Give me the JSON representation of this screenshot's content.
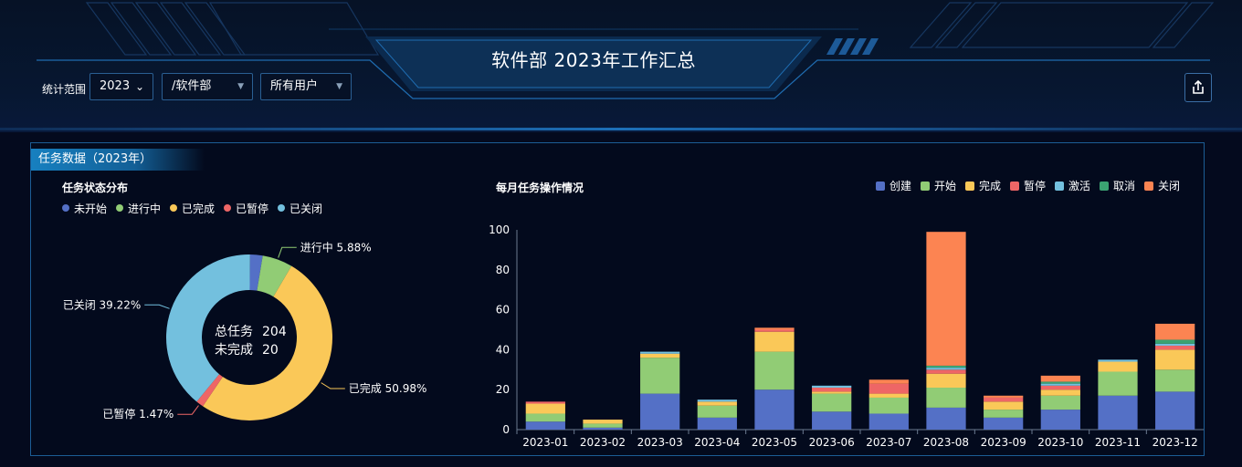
{
  "header": {
    "title": "软件部 2023年工作汇总",
    "filter_label": "统计范围",
    "year_select": "2023",
    "dept_select": "/软件部",
    "user_select": "所有用户",
    "share_icon": "export-icon"
  },
  "panel": {
    "tag": "任务数据（2023年）"
  },
  "chart_data": [
    {
      "type": "pie",
      "title": "任务状态分布",
      "donut": true,
      "legend_position": "top-left",
      "center_text": [
        {
          "label": "总任务",
          "value": "204"
        },
        {
          "label": "未完成",
          "value": "20"
        }
      ],
      "slices": [
        {
          "name": "未开始",
          "value": 2.45,
          "label": "",
          "color": "#5470c6"
        },
        {
          "name": "进行中",
          "value": 5.88,
          "label": "进行中  5.88%",
          "color": "#91cc75"
        },
        {
          "name": "已完成",
          "value": 50.98,
          "label": "已完成  50.98%",
          "color": "#fac858"
        },
        {
          "name": "已暂停",
          "value": 1.47,
          "label": "已暂停  1.47%",
          "color": "#ee6666"
        },
        {
          "name": "已关闭",
          "value": 39.22,
          "label": "已关闭  39.22%",
          "color": "#73c0de"
        }
      ]
    },
    {
      "type": "bar",
      "stacked": true,
      "title": "每月任务操作情况",
      "legend_position": "top-right",
      "categories": [
        "2023-01",
        "2023-02",
        "2023-03",
        "2023-04",
        "2023-05",
        "2023-06",
        "2023-07",
        "2023-08",
        "2023-09",
        "2023-10",
        "2023-11",
        "2023-12"
      ],
      "ylim": [
        0,
        100
      ],
      "yticks": [
        0,
        20,
        40,
        60,
        80,
        100
      ],
      "grid": false,
      "series": [
        {
          "name": "创建",
          "color": "#5470c6",
          "values": [
            4,
            1,
            18,
            6,
            20,
            9,
            8,
            11,
            6,
            10,
            17,
            19
          ]
        },
        {
          "name": "开始",
          "color": "#91cc75",
          "values": [
            4,
            2,
            18,
            6,
            19,
            9,
            8,
            10,
            4,
            7,
            12,
            11
          ]
        },
        {
          "name": "完成",
          "color": "#fac858",
          "values": [
            5,
            2,
            2,
            2,
            10,
            1,
            2,
            7,
            4,
            3,
            5,
            10
          ]
        },
        {
          "name": "暂停",
          "color": "#ee6666",
          "values": [
            1,
            0,
            0,
            0,
            1,
            2,
            5,
            2,
            2,
            2,
            0,
            2
          ]
        },
        {
          "name": "激活",
          "color": "#73c0de",
          "values": [
            0,
            0,
            1,
            1,
            0,
            1,
            0,
            1,
            0,
            1,
            1,
            1
          ]
        },
        {
          "name": "取消",
          "color": "#3ba272",
          "values": [
            0,
            0,
            0,
            0,
            0,
            0,
            0,
            1,
            0,
            1,
            0,
            2
          ]
        },
        {
          "name": "关闭",
          "color": "#fc8452",
          "values": [
            0,
            0,
            0,
            0,
            1,
            0,
            2,
            67,
            1,
            3,
            0,
            8
          ]
        }
      ]
    }
  ]
}
